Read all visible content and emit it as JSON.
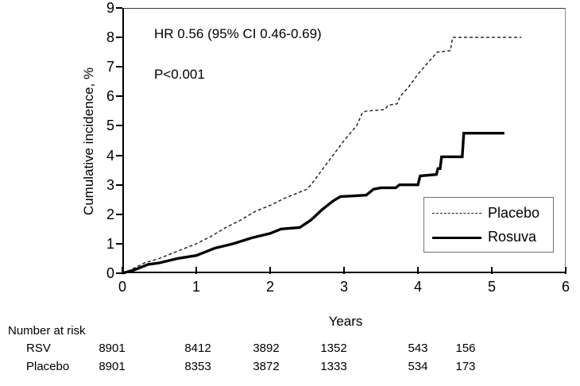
{
  "chart_data": {
    "type": "line",
    "title": "",
    "xlabel": "Years",
    "ylabel": "Cumulative incidence, %",
    "xlim": [
      0,
      6
    ],
    "ylim": [
      0,
      9
    ],
    "x_ticks": [
      "0",
      "1",
      "2",
      "3",
      "4",
      "5",
      "6"
    ],
    "y_ticks": [
      "0",
      "1",
      "2",
      "3",
      "4",
      "5",
      "6",
      "7",
      "8",
      "9"
    ],
    "grid": false,
    "annotations": {
      "hazard_ratio": "HR 0.56 (95% CI 0.46-0.69)",
      "p_value": "P<0.001"
    },
    "legend_position": "right-middle",
    "line_color": "#000000",
    "series": [
      {
        "name": "Placebo",
        "style": "dashed",
        "points": [
          [
            0,
            0
          ],
          [
            0.1,
            0.1
          ],
          [
            0.3,
            0.35
          ],
          [
            0.5,
            0.5
          ],
          [
            0.7,
            0.7
          ],
          [
            0.9,
            0.9
          ],
          [
            1.0,
            1.0
          ],
          [
            1.2,
            1.25
          ],
          [
            1.4,
            1.55
          ],
          [
            1.6,
            1.8
          ],
          [
            1.8,
            2.1
          ],
          [
            2.0,
            2.3
          ],
          [
            2.2,
            2.55
          ],
          [
            2.35,
            2.7
          ],
          [
            2.5,
            2.85
          ],
          [
            2.6,
            3.15
          ],
          [
            2.7,
            3.5
          ],
          [
            2.85,
            4.0
          ],
          [
            3.0,
            4.5
          ],
          [
            3.1,
            4.8
          ],
          [
            3.17,
            5.0
          ],
          [
            3.25,
            5.45
          ],
          [
            3.3,
            5.5
          ],
          [
            3.55,
            5.55
          ],
          [
            3.6,
            5.7
          ],
          [
            3.72,
            5.75
          ],
          [
            3.76,
            6.0
          ],
          [
            3.87,
            6.3
          ],
          [
            4.0,
            6.75
          ],
          [
            4.12,
            7.1
          ],
          [
            4.26,
            7.5
          ],
          [
            4.44,
            7.55
          ],
          [
            4.47,
            8.0
          ],
          [
            5.4,
            8.0
          ]
        ]
      },
      {
        "name": "Rosuva",
        "style": "solid",
        "points": [
          [
            0,
            0
          ],
          [
            0.15,
            0.1
          ],
          [
            0.35,
            0.3
          ],
          [
            0.5,
            0.35
          ],
          [
            0.75,
            0.5
          ],
          [
            1.0,
            0.6
          ],
          [
            1.25,
            0.85
          ],
          [
            1.5,
            1.0
          ],
          [
            1.75,
            1.2
          ],
          [
            2.0,
            1.35
          ],
          [
            2.15,
            1.5
          ],
          [
            2.4,
            1.55
          ],
          [
            2.55,
            1.8
          ],
          [
            2.7,
            2.15
          ],
          [
            2.85,
            2.45
          ],
          [
            2.95,
            2.6
          ],
          [
            3.3,
            2.65
          ],
          [
            3.4,
            2.85
          ],
          [
            3.5,
            2.9
          ],
          [
            3.7,
            2.9
          ],
          [
            3.75,
            3.0
          ],
          [
            4.0,
            3.0
          ],
          [
            4.03,
            3.3
          ],
          [
            4.25,
            3.35
          ],
          [
            4.27,
            3.55
          ],
          [
            4.3,
            3.55
          ],
          [
            4.32,
            3.95
          ],
          [
            4.6,
            3.95
          ],
          [
            4.62,
            4.75
          ],
          [
            5.17,
            4.75
          ]
        ]
      }
    ],
    "number_at_risk": {
      "label": "Number at risk",
      "rows": [
        {
          "label": "RSV",
          "values": [
            "8901",
            "8412",
            "3892",
            "1352",
            "543",
            "156"
          ]
        },
        {
          "label": "Placebo",
          "values": [
            "8901",
            "8353",
            "3872",
            "1333",
            "534",
            "173"
          ]
        }
      ]
    }
  }
}
